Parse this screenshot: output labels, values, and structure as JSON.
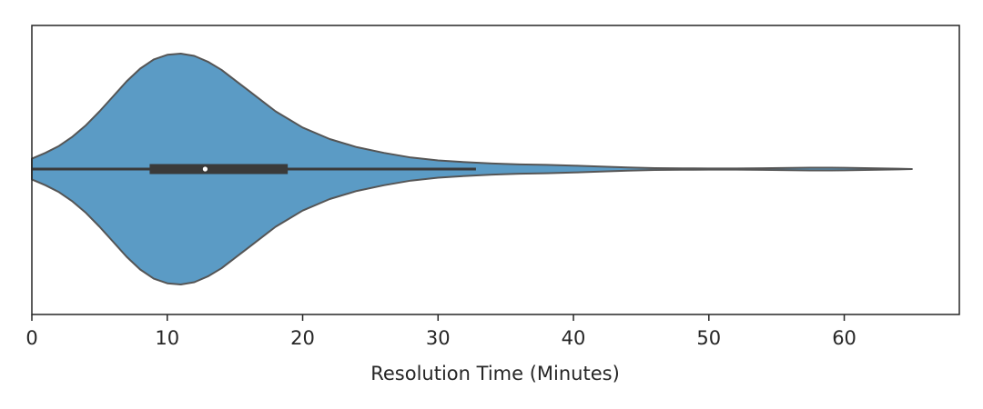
{
  "chart_data": {
    "type": "violin",
    "xlabel": "Resolution Time (Minutes)",
    "xlim": [
      0,
      68.5
    ],
    "xticks": [
      0,
      10,
      20,
      30,
      40,
      50,
      60
    ],
    "xtick_labels": [
      "0",
      "10",
      "20",
      "30",
      "40",
      "50",
      "60"
    ],
    "grid": false,
    "colors": {
      "violin_fill": "#5b9bc5",
      "violin_edge": "#555555",
      "box": "#3a3a3a",
      "median": "#ffffff",
      "frame": "#262626"
    },
    "density": {
      "x": [
        0,
        1,
        2,
        3,
        4,
        5,
        6,
        7,
        8,
        9,
        10,
        11,
        12,
        13,
        14,
        15,
        16,
        17,
        18,
        19,
        20,
        22,
        24,
        26,
        28,
        30,
        32,
        34,
        36,
        38,
        40,
        42,
        44,
        46,
        48,
        50,
        52,
        54,
        56,
        58,
        59,
        60,
        62,
        64,
        65
      ],
      "rel": [
        0.09,
        0.14,
        0.2,
        0.28,
        0.38,
        0.5,
        0.63,
        0.76,
        0.87,
        0.95,
        0.99,
        1.0,
        0.98,
        0.93,
        0.86,
        0.77,
        0.68,
        0.59,
        0.5,
        0.43,
        0.36,
        0.26,
        0.19,
        0.14,
        0.1,
        0.075,
        0.06,
        0.048,
        0.04,
        0.036,
        0.03,
        0.022,
        0.014,
        0.008,
        0.006,
        0.005,
        0.005,
        0.007,
        0.01,
        0.012,
        0.012,
        0.011,
        0.007,
        0.003,
        0
      ]
    },
    "box": {
      "q1": 8.7,
      "median": 12.8,
      "q3": 18.9,
      "whisker_low": 0,
      "whisker_high": 32.8
    }
  }
}
